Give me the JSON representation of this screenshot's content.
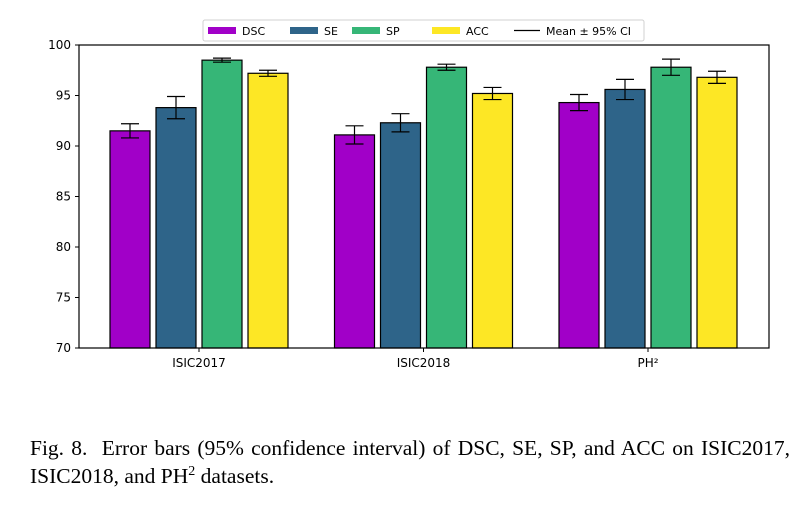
{
  "chart_data": {
    "type": "bar",
    "title": "",
    "xlabel": "",
    "ylabel": "",
    "categories": [
      "ISIC2017",
      "ISIC2018",
      "PH²"
    ],
    "ylim": [
      70,
      100
    ],
    "yticks": [
      70,
      75,
      80,
      85,
      90,
      95,
      100
    ],
    "grid": false,
    "legend": {
      "placement": "top-center",
      "entries": [
        "DSC",
        "SE",
        "SP",
        "ACC",
        "Mean ± 95% CI"
      ]
    },
    "series": [
      {
        "name": "DSC",
        "color": "#a100c8",
        "values": [
          91.5,
          91.1,
          94.3
        ],
        "ci_low": [
          90.8,
          90.2,
          93.5
        ],
        "ci_high": [
          92.2,
          92.0,
          95.1
        ]
      },
      {
        "name": "SE",
        "color": "#2e6489",
        "values": [
          93.8,
          92.3,
          95.6
        ],
        "ci_low": [
          92.7,
          91.4,
          94.6
        ],
        "ci_high": [
          94.9,
          93.2,
          96.6
        ]
      },
      {
        "name": "SP",
        "color": "#36b677",
        "values": [
          98.5,
          97.8,
          97.8
        ],
        "ci_low": [
          98.3,
          97.5,
          97.0
        ],
        "ci_high": [
          98.7,
          98.1,
          98.6
        ]
      },
      {
        "name": "ACC",
        "color": "#fde725",
        "values": [
          97.2,
          95.2,
          96.8
        ],
        "ci_low": [
          96.9,
          94.6,
          96.2
        ],
        "ci_high": [
          97.5,
          95.8,
          97.4
        ]
      }
    ],
    "errorbar_color": "#000000",
    "errorbar_label": "Mean ± 95% CI"
  },
  "caption": {
    "label": "Fig. 8.",
    "text_part1": "Error bars (95% confidence interval) of DSC, SE, SP, and ACC on ISIC2017, ISIC2018, and PH",
    "sup": "2",
    "text_part2": " datasets."
  }
}
